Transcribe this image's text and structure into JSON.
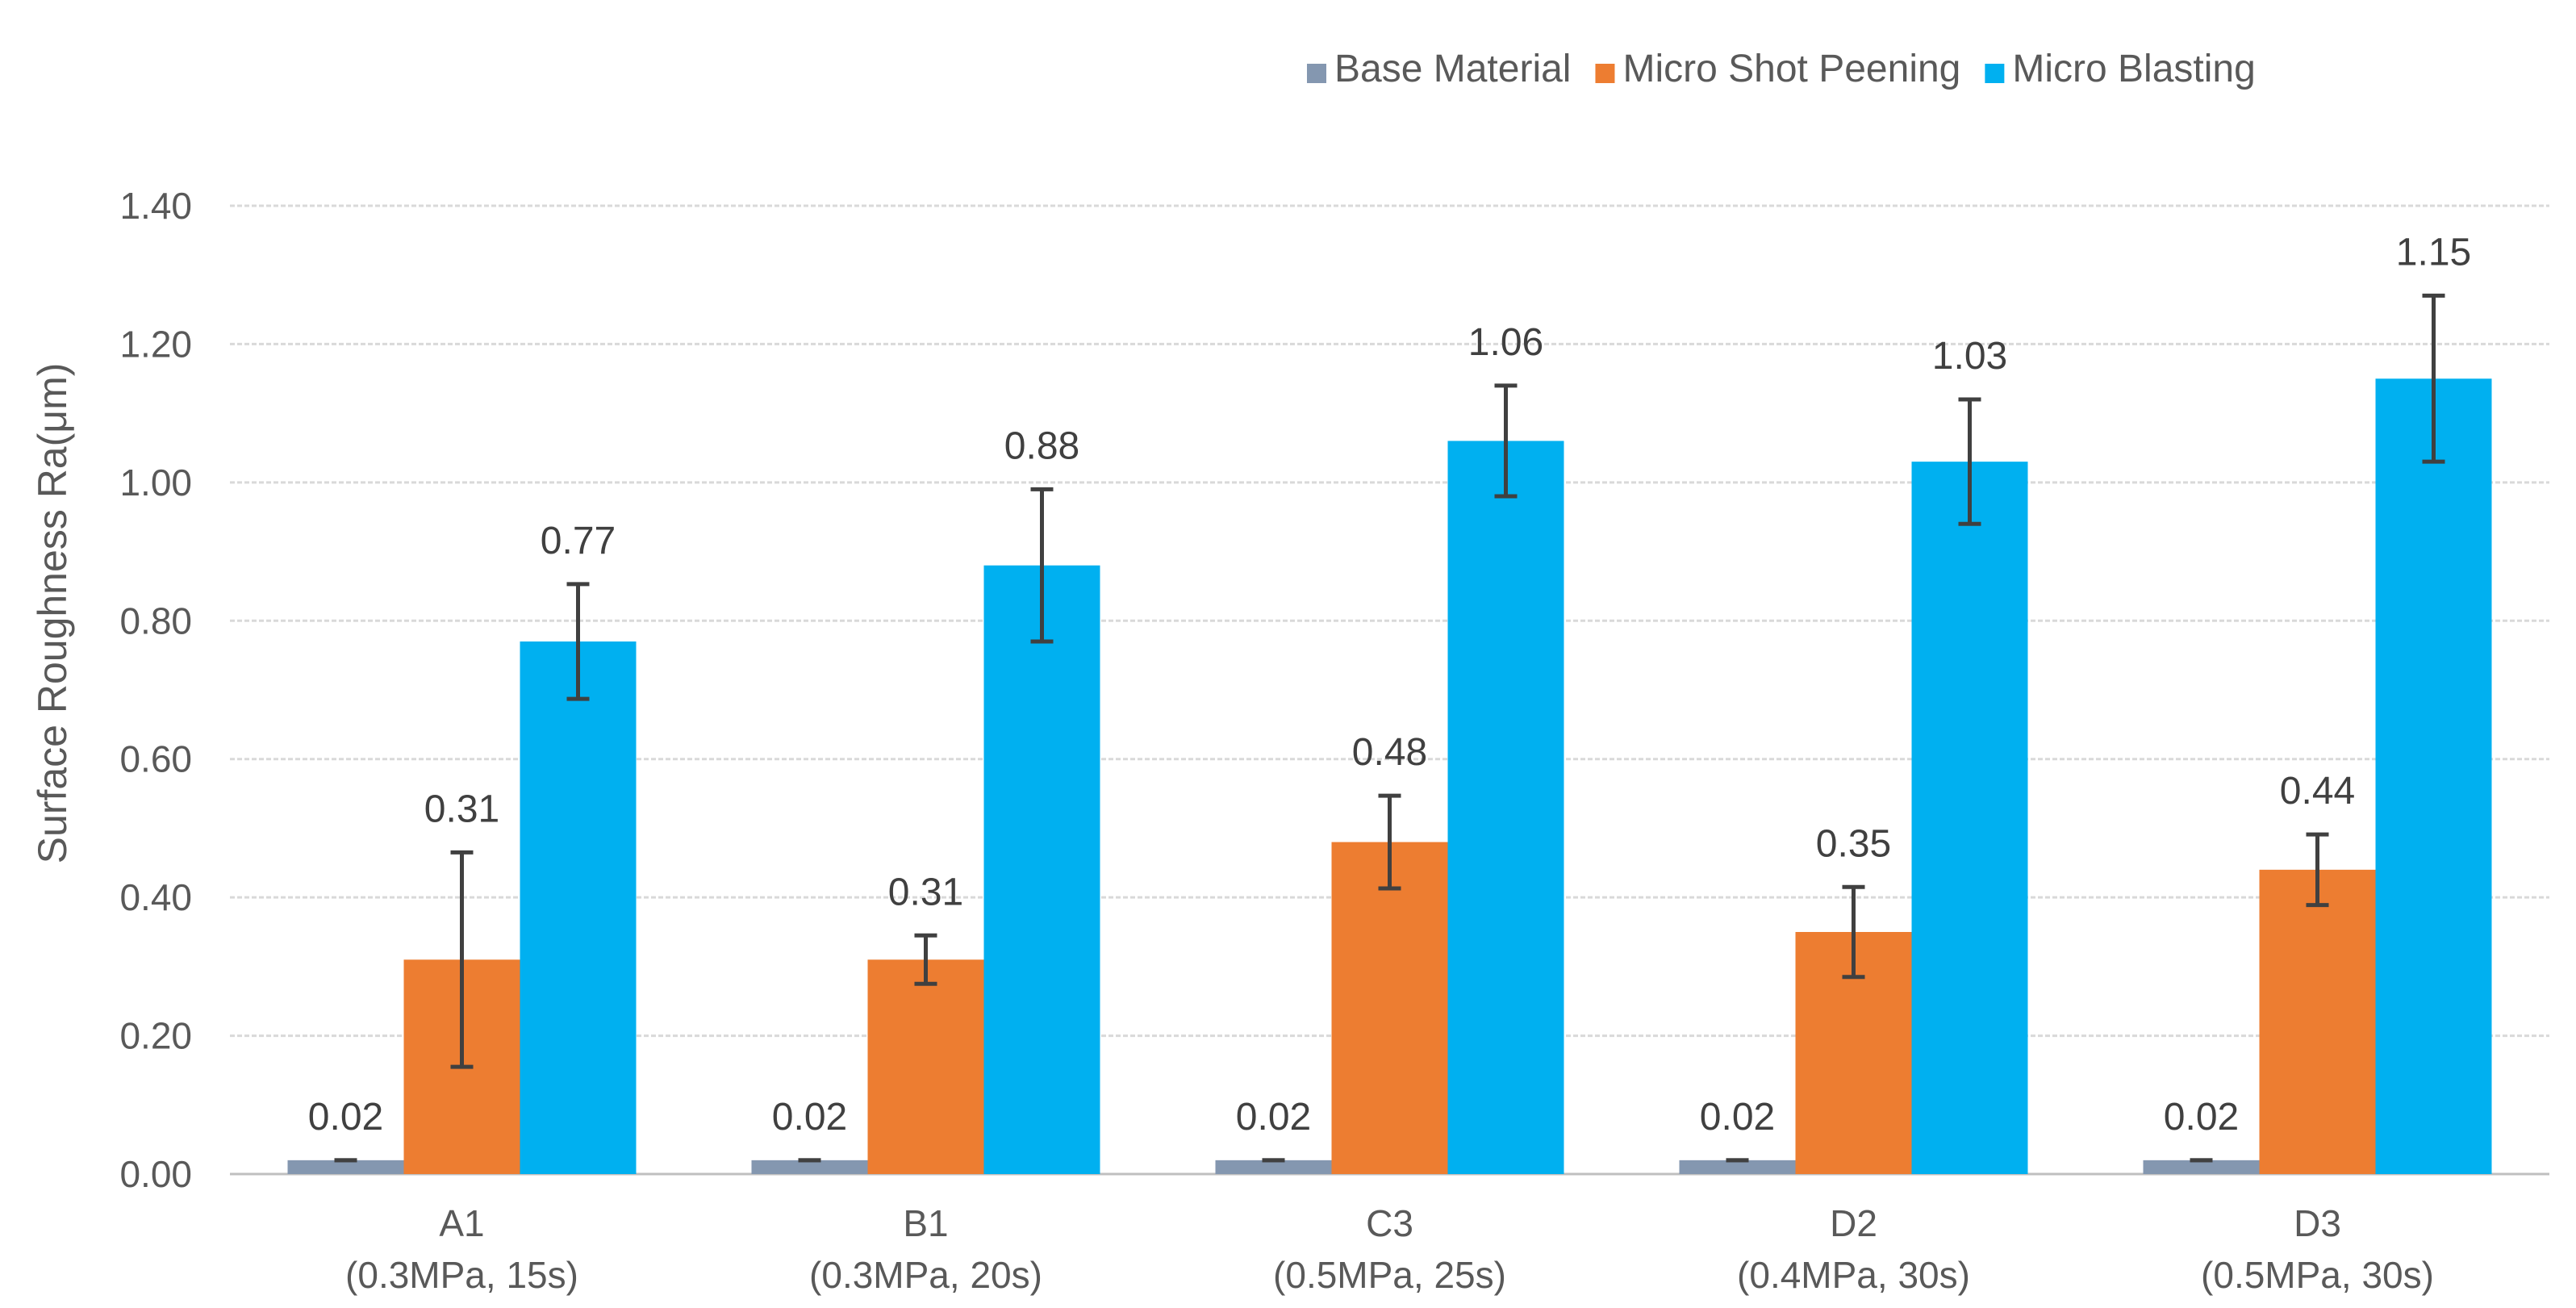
{
  "chart_data": {
    "type": "bar",
    "title": "",
    "xlabel": "",
    "ylabel": "Surface Roughness Ra(μm)",
    "ylim": [
      0,
      1.4
    ],
    "yticks": [
      0,
      0.2,
      0.4,
      0.6,
      0.8,
      1.0,
      1.2,
      1.4
    ],
    "ytick_labels": [
      "0.00",
      "0.20",
      "0.40",
      "0.60",
      "0.80",
      "1.00",
      "1.20",
      "1.40"
    ],
    "grid": true,
    "legend_position": "top-right",
    "categories": [
      {
        "line1": "A1",
        "line2": "(0.3MPa, 15s)"
      },
      {
        "line1": "B1",
        "line2": "(0.3MPa, 20s)"
      },
      {
        "line1": "C3",
        "line2": "(0.5MPa, 25s)"
      },
      {
        "line1": "D2",
        "line2": "(0.4MPa, 30s)"
      },
      {
        "line1": "D3",
        "line2": "(0.5MPa, 30s)"
      }
    ],
    "series": [
      {
        "name": "Base Material",
        "color": "#8497b0",
        "values": [
          0.02,
          0.02,
          0.02,
          0.02,
          0.02
        ],
        "labels": [
          "0.02",
          "0.02",
          "0.02",
          "0.02",
          "0.02"
        ],
        "error": [
          0.0,
          0.0,
          0.0,
          0.0,
          0.0
        ]
      },
      {
        "name": "Micro Shot Peening",
        "color": "#ed7d31",
        "values": [
          0.31,
          0.31,
          0.48,
          0.35,
          0.44
        ],
        "labels": [
          "0.31",
          "0.31",
          "0.48",
          "0.35",
          "0.44"
        ],
        "error": [
          0.155,
          0.035,
          0.067,
          0.065,
          0.051
        ]
      },
      {
        "name": "Micro Blasting",
        "color": "#00b0f0",
        "values": [
          0.77,
          0.88,
          1.06,
          1.03,
          1.15
        ],
        "labels": [
          "0.77",
          "0.88",
          "1.06",
          "1.03",
          "1.15"
        ],
        "error": [
          0.083,
          0.11,
          0.08,
          0.09,
          0.12
        ]
      }
    ]
  }
}
